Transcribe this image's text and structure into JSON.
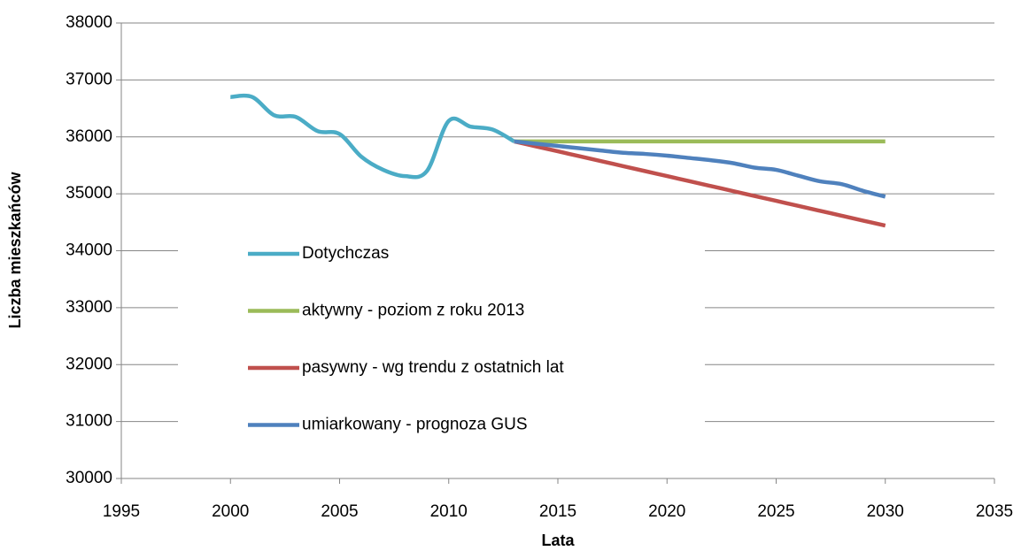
{
  "chart_data": {
    "type": "line",
    "x_label": "Lata",
    "y_label": "Liczba mieszkańców",
    "x": [
      2000,
      2001,
      2002,
      2003,
      2004,
      2005,
      2006,
      2007,
      2008,
      2009,
      2010,
      2011,
      2012,
      2013,
      2014,
      2015,
      2016,
      2017,
      2018,
      2019,
      2020,
      2021,
      2022,
      2023,
      2024,
      2025,
      2026,
      2027,
      2028,
      2029,
      2030
    ],
    "series": [
      {
        "name": "Dotychczas",
        "color": "#4bacc6",
        "values": [
          36700,
          36700,
          36380,
          36350,
          36100,
          36050,
          35650,
          35420,
          35310,
          35400,
          36280,
          36180,
          36130,
          35920,
          null,
          null,
          null,
          null,
          null,
          null,
          null,
          null,
          null,
          null,
          null,
          null,
          null,
          null,
          null,
          null,
          null
        ]
      },
      {
        "name": "aktywny - poziom z roku 2013",
        "color": "#9bbb59",
        "values": [
          null,
          null,
          null,
          null,
          null,
          null,
          null,
          null,
          null,
          null,
          null,
          null,
          null,
          35920,
          35920,
          35920,
          35920,
          35920,
          35920,
          35920,
          35920,
          35920,
          35920,
          35920,
          35920,
          35920,
          35920,
          35920,
          35920,
          35920,
          35920
        ]
      },
      {
        "name": "pasywny - wg trendu z ostatnich lat",
        "color": "#c0504d",
        "values": [
          null,
          null,
          null,
          null,
          null,
          null,
          null,
          null,
          null,
          null,
          null,
          null,
          null,
          35920,
          35833,
          35746,
          35659,
          35572,
          35485,
          35398,
          35311,
          35224,
          35137,
          35050,
          34963,
          34876,
          34789,
          34702,
          34615,
          34528,
          34441
        ]
      },
      {
        "name": "umiarkowany - prognoza GUS",
        "color": "#4f81bd",
        "values": [
          null,
          null,
          null,
          null,
          null,
          null,
          null,
          null,
          null,
          null,
          null,
          null,
          null,
          35920,
          35880,
          35840,
          35800,
          35760,
          35720,
          35700,
          35670,
          35630,
          35590,
          35540,
          35460,
          35420,
          35320,
          35220,
          35170,
          35050,
          34950
        ]
      }
    ],
    "xlim": [
      1995,
      2035
    ],
    "xticks": [
      1995,
      2000,
      2005,
      2010,
      2015,
      2020,
      2025,
      2030,
      2035
    ],
    "ylim": [
      30000,
      38000
    ],
    "yticks": [
      30000,
      31000,
      32000,
      33000,
      34000,
      35000,
      36000,
      37000,
      38000
    ],
    "grid": true,
    "smooth": true,
    "legend": "left"
  }
}
